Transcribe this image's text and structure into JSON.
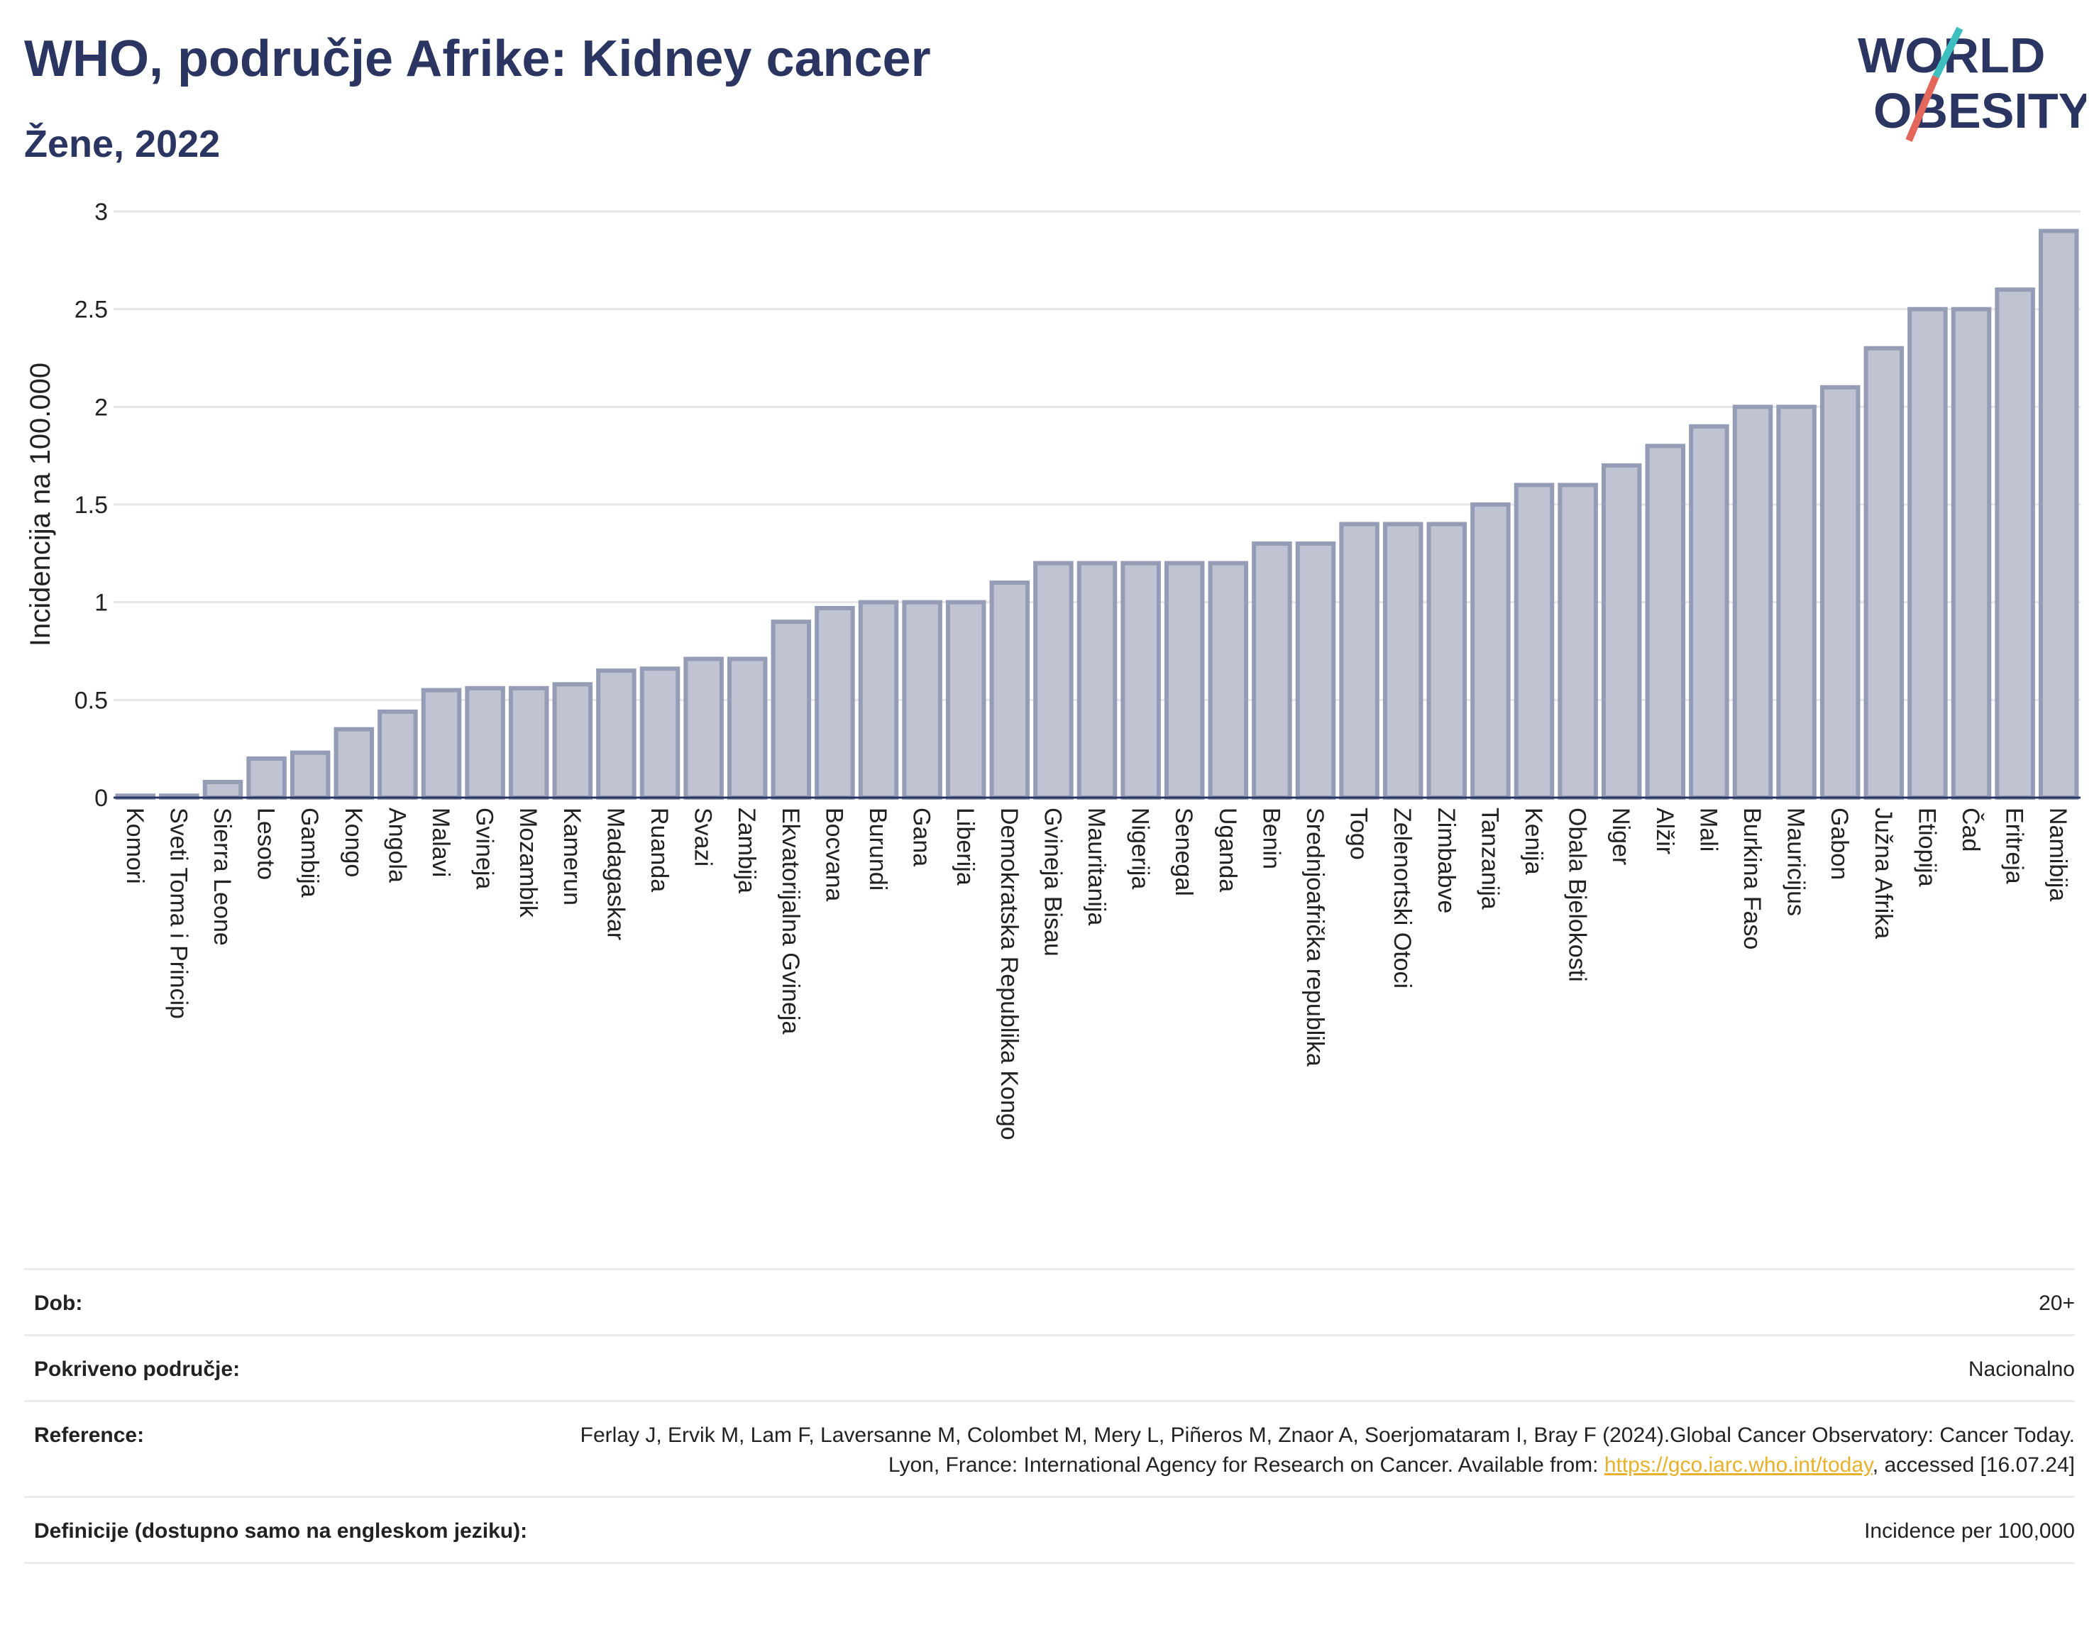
{
  "header": {
    "title": "WHO, područje Afrike: Kidney cancer",
    "subtitle": "Žene, 2022"
  },
  "logo": {
    "line1": "WORLD",
    "line2": "OBESITY"
  },
  "chart_data": {
    "type": "bar",
    "ylabel": "Incidencija na 100.000",
    "ylim": [
      0,
      3
    ],
    "yticks": [
      0,
      0.5,
      1,
      1.5,
      2,
      2.5,
      3
    ],
    "ytick_labels": [
      "0",
      "0.5",
      "1",
      "1.5",
      "2",
      "2.5",
      "3"
    ],
    "grid": true,
    "bar_color": "#c0c4d2",
    "bar_edge_color": "#959cb5",
    "categories": [
      "Komori",
      "Sveti Toma i Princip",
      "Sierra Leone",
      "Lesoto",
      "Gambija",
      "Kongo",
      "Angola",
      "Malavi",
      "Gvineja",
      "Mozambik",
      "Kamerun",
      "Madagaskar",
      "Ruanda",
      "Svazi",
      "Zambija",
      "Ekvatorijalna Gvineja",
      "Bocvana",
      "Burundi",
      "Gana",
      "Liberija",
      "Demokratska Republika Kongo",
      "Gvineja Bisau",
      "Mauritanija",
      "Nigerija",
      "Senegal",
      "Uganda",
      "Benin",
      "Srednjoafrička republika",
      "Togo",
      "Zelenortski Otoci",
      "Zimbabve",
      "Tanzanija",
      "Kenija",
      "Obala Bjelokosti",
      "Niger",
      "Alžir",
      "Mali",
      "Burkina Faso",
      "Mauricijus",
      "Gabon",
      "Južna Afrika",
      "Etiopija",
      "Čad",
      "Eritreja",
      "Namibija"
    ],
    "values": [
      0.01,
      0.01,
      0.08,
      0.2,
      0.23,
      0.35,
      0.44,
      0.55,
      0.56,
      0.56,
      0.58,
      0.65,
      0.66,
      0.71,
      0.71,
      0.9,
      0.97,
      1.0,
      1.0,
      1.0,
      1.1,
      1.2,
      1.2,
      1.2,
      1.2,
      1.2,
      1.3,
      1.3,
      1.4,
      1.4,
      1.4,
      1.5,
      1.6,
      1.6,
      1.7,
      1.8,
      1.9,
      2.0,
      2.0,
      2.1,
      2.3,
      2.5,
      2.5,
      2.6,
      2.9
    ]
  },
  "meta": [
    {
      "label": "Dob:",
      "value": "20+"
    },
    {
      "label": "Pokriveno područje:",
      "value": "Nacionalno"
    },
    {
      "label": "Reference:",
      "value": "Ferlay J, Ervik M, Lam F, Laversanne M, Colombet M, Mery L, Piñeros M, Znaor A, Soerjomataram I, Bray F (2024).Global Cancer Observatory: Cancer Today. Lyon, France: International Agency for Research on Cancer. Available from: ",
      "link": "https://gco.iarc.who.int/today",
      "suffix": ", accessed [16.07.24]"
    },
    {
      "label": "Definicije (dostupno samo na engleskom jeziku):",
      "value": "Incidence per 100,000"
    }
  ]
}
